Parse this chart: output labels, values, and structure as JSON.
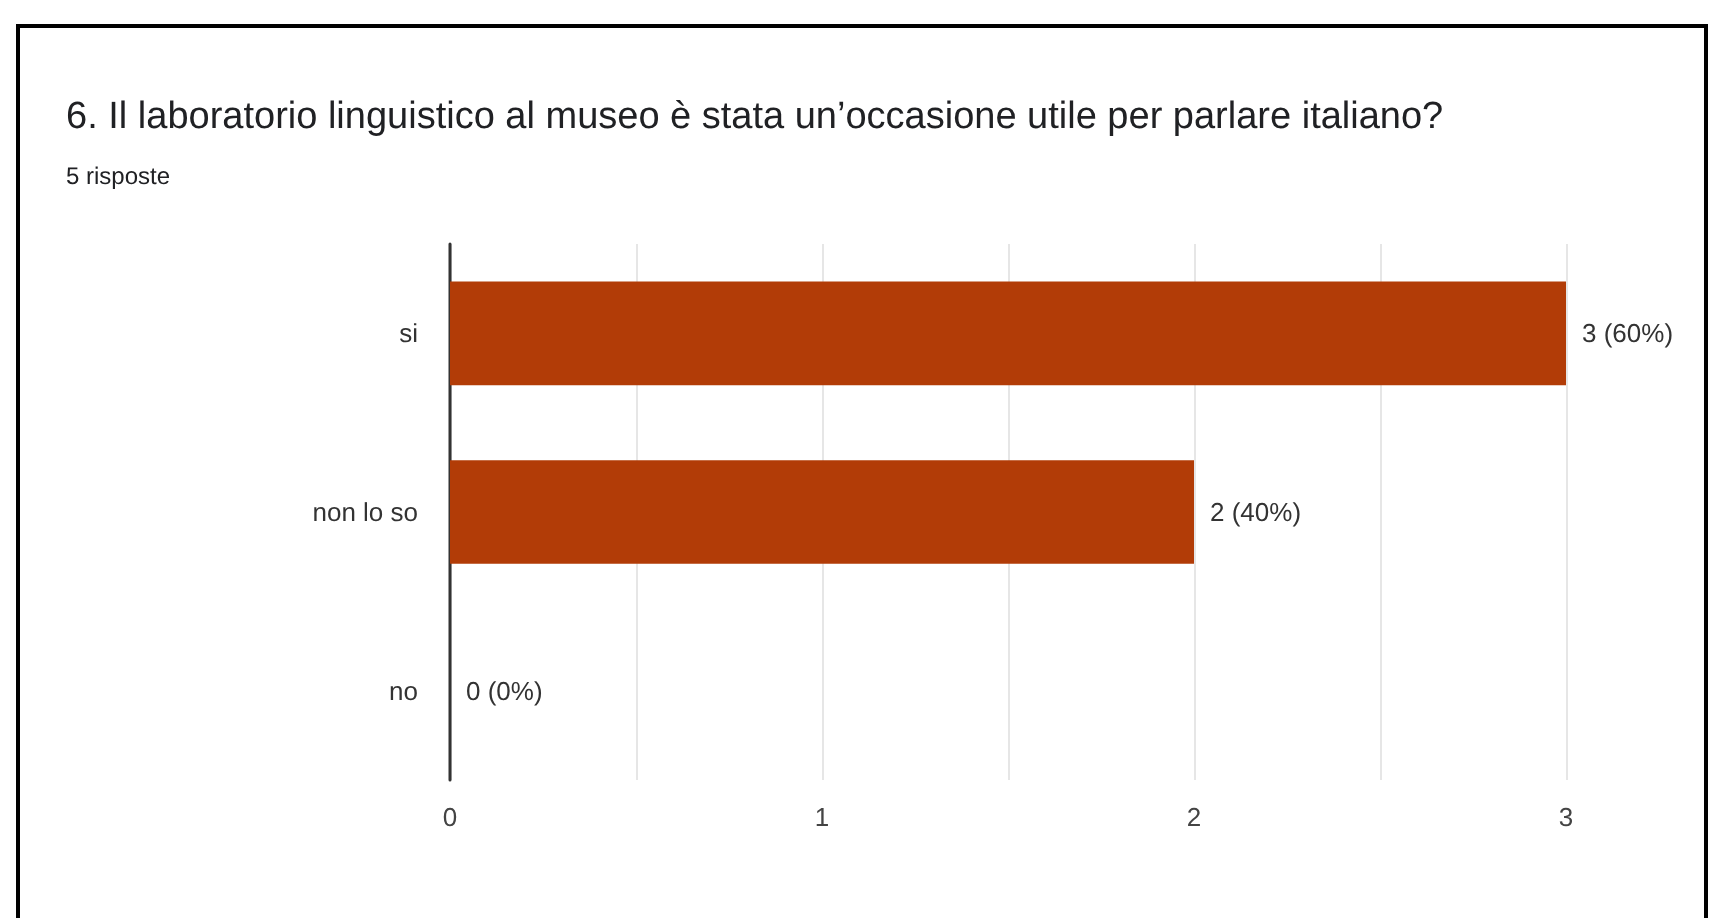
{
  "chart_data": {
    "type": "bar",
    "orientation": "horizontal",
    "title": "6. Il laboratorio linguistico al museo è stata un’occasione utile per parlare italiano?",
    "subtitle": "5 risposte",
    "categories": [
      "si",
      "non lo so",
      "no"
    ],
    "values": [
      3,
      2,
      0
    ],
    "color": "#b23c07",
    "value_labels": [
      "3 (60%)",
      "2 (40%)",
      "0 (0%)"
    ],
    "xlim": [
      0,
      3
    ],
    "xticks": [
      0,
      {
        "value": 0.5,
        "label": null
      },
      1,
      {
        "value": 1.5,
        "label": null
      },
      2,
      {
        "value": 2.5,
        "label": null
      },
      3
    ],
    "grid": "x"
  }
}
